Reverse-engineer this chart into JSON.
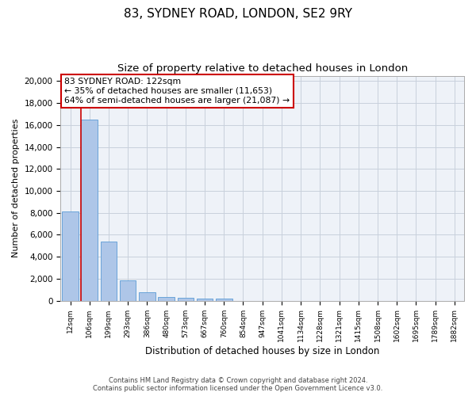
{
  "title": "83, SYDNEY ROAD, LONDON, SE2 9RY",
  "subtitle": "Size of property relative to detached houses in London",
  "xlabel": "Distribution of detached houses by size in London",
  "ylabel": "Number of detached properties",
  "footer_line1": "Contains HM Land Registry data © Crown copyright and database right 2024.",
  "footer_line2": "Contains public sector information licensed under the Open Government Licence v3.0.",
  "bar_labels": [
    "12sqm",
    "106sqm",
    "199sqm",
    "293sqm",
    "386sqm",
    "480sqm",
    "573sqm",
    "667sqm",
    "760sqm",
    "854sqm",
    "947sqm",
    "1041sqm",
    "1134sqm",
    "1228sqm",
    "1321sqm",
    "1415sqm",
    "1508sqm",
    "1602sqm",
    "1695sqm",
    "1789sqm",
    "1882sqm"
  ],
  "bar_values": [
    8100,
    16500,
    5350,
    1850,
    780,
    340,
    270,
    220,
    200,
    0,
    0,
    0,
    0,
    0,
    0,
    0,
    0,
    0,
    0,
    0,
    0
  ],
  "bar_color": "#aec6e8",
  "bar_edge_color": "#5b9bd5",
  "property_line_x": 0.575,
  "annotation_text": "83 SYDNEY ROAD: 122sqm\n← 35% of detached houses are smaller (11,653)\n64% of semi-detached houses are larger (21,087) →",
  "annotation_box_color": "#ffffff",
  "annotation_box_edge": "#cc0000",
  "property_line_color": "#cc0000",
  "ylim": [
    0,
    20500
  ],
  "yticks": [
    0,
    2000,
    4000,
    6000,
    8000,
    10000,
    12000,
    14000,
    16000,
    18000,
    20000
  ],
  "grid_color": "#c8d0dc",
  "bg_color": "#eef2f8",
  "title_fontsize": 11,
  "subtitle_fontsize": 9.5
}
